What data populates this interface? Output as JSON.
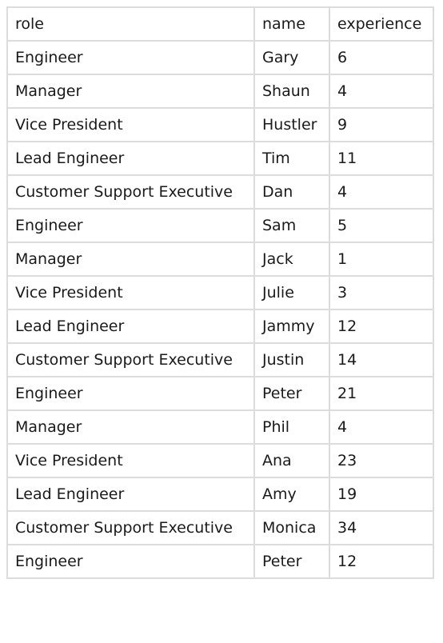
{
  "table": {
    "headers": [
      "role",
      "name",
      "experience"
    ],
    "rows": [
      [
        "Engineer",
        "Gary",
        "6"
      ],
      [
        "Manager",
        "Shaun",
        "4"
      ],
      [
        "Vice President",
        "Hustler",
        "9"
      ],
      [
        "Lead Engineer",
        "Tim",
        "11"
      ],
      [
        "Customer Support Executive",
        "Dan",
        "4"
      ],
      [
        "Engineer",
        "Sam",
        "5"
      ],
      [
        "Manager",
        "Jack",
        "1"
      ],
      [
        "Vice President",
        "Julie",
        "3"
      ],
      [
        "Lead Engineer",
        "Jammy",
        "12"
      ],
      [
        "Customer Support Executive",
        "Justin",
        "14"
      ],
      [
        "Engineer",
        "Peter",
        "21"
      ],
      [
        "Manager",
        "Phil",
        "4"
      ],
      [
        "Vice President",
        "Ana",
        "23"
      ],
      [
        "Lead Engineer",
        "Amy",
        "19"
      ],
      [
        "Customer Support Executive",
        "Monica",
        "34"
      ],
      [
        "Engineer",
        "Peter",
        "12"
      ]
    ]
  }
}
